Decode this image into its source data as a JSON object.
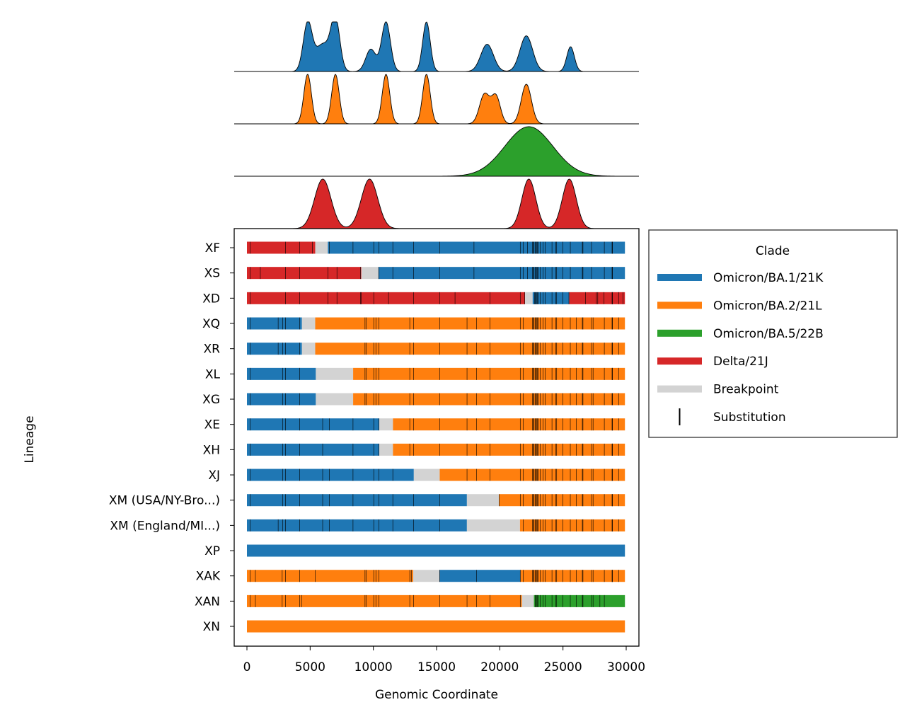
{
  "colors": {
    "BA1": "#1f77b4",
    "BA2": "#ff7f0e",
    "BA5": "#2ca02c",
    "Delta": "#d62728",
    "Breakpoint": "#d3d3d3",
    "Substitution": "#000000"
  },
  "chart_data": {
    "type": "bar",
    "subtype": "horizontal-segment-genome-plot-with-density-panels",
    "xlabel": "Genomic Coordinate",
    "ylabel": "Lineage",
    "xlim": [
      -1000,
      30800
    ],
    "xticks": [
      0,
      5000,
      10000,
      15000,
      20000,
      25000,
      30000
    ],
    "legend": {
      "title": "Clade",
      "position": "right, outside",
      "entries": [
        {
          "label": "Omicron/BA.1/21K",
          "key": "BA1",
          "kind": "line"
        },
        {
          "label": "Omicron/BA.2/21L",
          "key": "BA2",
          "kind": "line"
        },
        {
          "label": "Omicron/BA.5/22B",
          "key": "BA5",
          "kind": "line"
        },
        {
          "label": "Delta/21J",
          "key": "Delta",
          "kind": "line"
        },
        {
          "label": "Breakpoint",
          "key": "Breakpoint",
          "kind": "line"
        },
        {
          "label": "Substitution",
          "key": "Substitution",
          "kind": "tick"
        }
      ]
    },
    "density_panels": [
      {
        "clade": "BA1",
        "peaks": [
          [
            4800,
            350,
            0.95
          ],
          [
            6000,
            600,
            0.55
          ],
          [
            7000,
            350,
            1.0
          ],
          [
            9800,
            400,
            0.45
          ],
          [
            11000,
            350,
            1.0
          ],
          [
            14200,
            300,
            1.0
          ],
          [
            19000,
            500,
            0.55
          ],
          [
            22100,
            500,
            0.72
          ],
          [
            25600,
            300,
            0.5
          ]
        ]
      },
      {
        "clade": "BA2",
        "peaks": [
          [
            4800,
            300,
            1.0
          ],
          [
            7000,
            300,
            1.0
          ],
          [
            11000,
            300,
            1.0
          ],
          [
            14200,
            300,
            1.0
          ],
          [
            18800,
            400,
            0.6
          ],
          [
            19700,
            350,
            0.55
          ],
          [
            22100,
            400,
            0.8
          ]
        ]
      },
      {
        "clade": "BA5",
        "peaks": [
          [
            22300,
            1900,
            1.0
          ]
        ]
      },
      {
        "clade": "Delta",
        "peaks": [
          [
            6000,
            650,
            1.0
          ],
          [
            9700,
            650,
            1.0
          ],
          [
            22300,
            550,
            1.0
          ],
          [
            25500,
            550,
            1.0
          ]
        ]
      }
    ],
    "lineages": [
      {
        "name": "XF",
        "segments": [
          [
            "Delta",
            0,
            5400
          ],
          [
            "Breakpoint",
            5400,
            6400
          ],
          [
            "BA1",
            6400,
            29900
          ]
        ],
        "subs": [
          240,
          3040,
          4180,
          5180,
          6520,
          8390,
          10030,
          10450,
          11540,
          13190,
          15240,
          17960,
          21620,
          21850,
          22200,
          22580,
          22670,
          22710,
          22810,
          22880,
          22900,
          22990,
          23040,
          23200,
          23420,
          23600,
          24130,
          24420,
          24500,
          25000,
          25580,
          26530,
          26580,
          27260,
          28270,
          28880,
          28900,
          28910
        ]
      },
      {
        "name": "XS",
        "segments": [
          [
            "Delta",
            0,
            9050
          ],
          [
            "Breakpoint",
            9050,
            10400
          ],
          [
            "BA1",
            10400,
            29900
          ]
        ],
        "subs": [
          240,
          1060,
          3040,
          4180,
          6400,
          7120,
          8990,
          10450,
          11540,
          13190,
          15240,
          17960,
          21620,
          21850,
          22200,
          22580,
          22670,
          22710,
          22810,
          22880,
          22900,
          22990,
          23040,
          23200,
          23420,
          23600,
          24130,
          24420,
          24500,
          25000,
          25580,
          26530,
          26580,
          27260,
          28270,
          28880,
          28900,
          28910
        ]
      },
      {
        "name": "XD",
        "segments": [
          [
            "Delta",
            0,
            22000
          ],
          [
            "Breakpoint",
            22000,
            22600
          ],
          [
            "BA1",
            22600,
            25500
          ],
          [
            "Delta",
            25500,
            29900
          ]
        ],
        "subs": [
          240,
          3040,
          4180,
          6400,
          7120,
          8990,
          9050,
          10030,
          11200,
          13190,
          15240,
          16460,
          19220,
          21620,
          21980,
          22750,
          22810,
          22880,
          22900,
          22990,
          23040,
          23200,
          23420,
          23600,
          24130,
          24420,
          24500,
          25000,
          25470,
          26770,
          27640,
          27750,
          28250,
          28880,
          28900,
          28910,
          29400,
          29740
        ]
      },
      {
        "name": "XQ",
        "segments": [
          [
            "BA1",
            0,
            4350
          ],
          [
            "Breakpoint",
            4350,
            5400
          ],
          [
            "BA2",
            5400,
            29900
          ]
        ],
        "subs": [
          240,
          2470,
          2830,
          3040,
          4180,
          9340,
          9420,
          10030,
          10200,
          10450,
          12880,
          13190,
          15240,
          17410,
          18160,
          19220,
          21620,
          21850,
          22580,
          22670,
          22710,
          22810,
          22880,
          22900,
          22990,
          23040,
          23200,
          23420,
          23600,
          24130,
          24420,
          24500,
          25000,
          25580,
          26060,
          26530,
          26580,
          27260,
          27380,
          28270,
          28880,
          28900,
          28910,
          29400
        ]
      },
      {
        "name": "XR",
        "segments": [
          [
            "BA1",
            0,
            4350
          ],
          [
            "Breakpoint",
            4350,
            5400
          ],
          [
            "BA2",
            5400,
            29900
          ]
        ],
        "subs": [
          240,
          2470,
          2830,
          3040,
          4180,
          9340,
          9420,
          10030,
          10200,
          10450,
          12880,
          13190,
          15240,
          17410,
          18160,
          19220,
          21620,
          21850,
          22580,
          22670,
          22710,
          22810,
          22880,
          22900,
          22990,
          23040,
          23200,
          23420,
          23600,
          24130,
          24420,
          24500,
          25000,
          25580,
          26060,
          26530,
          26580,
          27260,
          27380,
          28270,
          28880,
          28900,
          28910,
          29400
        ]
      },
      {
        "name": "XL",
        "segments": [
          [
            "BA1",
            0,
            5450
          ],
          [
            "Breakpoint",
            5450,
            8400
          ],
          [
            "BA2",
            8400,
            29900
          ]
        ],
        "subs": [
          240,
          2830,
          3040,
          4180,
          9340,
          9420,
          10030,
          10200,
          10450,
          12880,
          13190,
          15240,
          17410,
          18160,
          19220,
          21620,
          21850,
          22580,
          22670,
          22710,
          22810,
          22880,
          22900,
          22990,
          23040,
          23200,
          23420,
          23600,
          24130,
          24420,
          24500,
          25000,
          25580,
          26060,
          26530,
          26580,
          27260,
          27380,
          28270,
          28880,
          28900,
          28910,
          29400
        ]
      },
      {
        "name": "XG",
        "segments": [
          [
            "BA1",
            0,
            5450
          ],
          [
            "Breakpoint",
            5450,
            8400
          ],
          [
            "BA2",
            8400,
            29900
          ]
        ],
        "subs": [
          240,
          2830,
          3040,
          4180,
          9340,
          9420,
          10030,
          10200,
          10450,
          12880,
          13190,
          15240,
          17410,
          18160,
          19220,
          21620,
          21850,
          22580,
          22670,
          22710,
          22810,
          22880,
          22900,
          22990,
          23040,
          23200,
          23420,
          23600,
          24130,
          24420,
          24500,
          25000,
          25580,
          26060,
          26530,
          26580,
          27260,
          27380,
          28270,
          28880,
          28900,
          28910,
          29400
        ]
      },
      {
        "name": "XE",
        "segments": [
          [
            "BA1",
            0,
            10450
          ],
          [
            "Breakpoint",
            10450,
            11550
          ],
          [
            "BA2",
            11550,
            29900
          ]
        ],
        "subs": [
          240,
          2830,
          3040,
          4180,
          5990,
          6510,
          8390,
          10030,
          10450,
          12880,
          13190,
          15240,
          17410,
          18160,
          19220,
          21620,
          21850,
          22580,
          22670,
          22710,
          22810,
          22880,
          22900,
          22990,
          23040,
          23200,
          23420,
          23600,
          24130,
          24420,
          24500,
          25000,
          25580,
          26060,
          26530,
          26580,
          27260,
          27380,
          28270,
          28880,
          28900,
          28910,
          29400
        ]
      },
      {
        "name": "XH",
        "segments": [
          [
            "BA1",
            0,
            10450
          ],
          [
            "Breakpoint",
            10450,
            11550
          ],
          [
            "BA2",
            11550,
            29900
          ]
        ],
        "subs": [
          240,
          2830,
          3040,
          4180,
          5990,
          8390,
          10030,
          10450,
          12880,
          13190,
          15240,
          17410,
          18160,
          19220,
          21620,
          21850,
          22580,
          22670,
          22710,
          22810,
          22880,
          22900,
          22990,
          23040,
          23200,
          23420,
          23600,
          24130,
          24420,
          24500,
          25000,
          25580,
          26060,
          26530,
          26580,
          27260,
          27380,
          28270,
          28880,
          28900,
          28910,
          29400
        ]
      },
      {
        "name": "XJ",
        "segments": [
          [
            "BA1",
            0,
            13200
          ],
          [
            "Breakpoint",
            13200,
            15250
          ],
          [
            "BA2",
            15250,
            29900
          ]
        ],
        "subs": [
          240,
          2830,
          3040,
          4180,
          5990,
          6510,
          8390,
          10030,
          10450,
          11540,
          17410,
          18160,
          19220,
          21620,
          21850,
          22580,
          22670,
          22710,
          22810,
          22880,
          22900,
          22990,
          23040,
          23200,
          23420,
          23600,
          24130,
          24420,
          24500,
          25000,
          25580,
          26060,
          26530,
          26580,
          27260,
          27380,
          28270,
          28880,
          28900,
          28910,
          29400
        ]
      },
      {
        "name": "XM (USA/NY-Bro...)",
        "segments": [
          [
            "BA1",
            0,
            17400
          ],
          [
            "Breakpoint",
            17400,
            19950
          ],
          [
            "BA2",
            19950,
            29900
          ]
        ],
        "subs": [
          240,
          2830,
          3040,
          4180,
          5990,
          6510,
          8390,
          10030,
          10450,
          11540,
          13190,
          15240,
          19950,
          21620,
          21850,
          22580,
          22670,
          22710,
          22810,
          22880,
          22900,
          22990,
          23040,
          23200,
          23420,
          23600,
          24130,
          24420,
          24500,
          25000,
          25580,
          26060,
          26530,
          26580,
          27260,
          27380,
          28270,
          28880,
          28900,
          28910,
          29400
        ]
      },
      {
        "name": "XM (England/MI...)",
        "segments": [
          [
            "BA1",
            0,
            17400
          ],
          [
            "Breakpoint",
            17400,
            21600
          ],
          [
            "BA2",
            21600,
            29900
          ]
        ],
        "subs": [
          240,
          2470,
          2830,
          3040,
          4180,
          5990,
          6510,
          8390,
          10030,
          10450,
          11540,
          13190,
          15240,
          21850,
          22580,
          22670,
          22710,
          22810,
          22880,
          22900,
          22990,
          23040,
          23200,
          23420,
          23600,
          24130,
          24420,
          24500,
          25000,
          25580,
          26060,
          26530,
          26580,
          27260,
          27380,
          28270,
          28880,
          28900,
          28910,
          29400
        ]
      },
      {
        "name": "XP",
        "segments": [
          [
            "BA1",
            0,
            29900
          ]
        ],
        "subs": []
      },
      {
        "name": "XAK",
        "segments": [
          [
            "BA2",
            0,
            13150
          ],
          [
            "Breakpoint",
            13150,
            15250
          ],
          [
            "BA1",
            15250,
            21650
          ],
          [
            "BA2",
            21650,
            29900
          ]
        ],
        "subs": [
          240,
          670,
          2790,
          3040,
          4180,
          5390,
          9340,
          9420,
          10030,
          10200,
          10450,
          12880,
          13000,
          15240,
          18160,
          21620,
          21850,
          22580,
          22670,
          22710,
          22810,
          22880,
          22900,
          22990,
          23040,
          23200,
          23420,
          23600,
          24130,
          24420,
          24500,
          25000,
          25580,
          26060,
          26530,
          26580,
          27260,
          27380,
          28270,
          28880,
          28900,
          28910,
          29400
        ]
      },
      {
        "name": "XAN",
        "segments": [
          [
            "BA2",
            0,
            21750
          ],
          [
            "Breakpoint",
            21750,
            22700
          ],
          [
            "BA5",
            22700,
            29900
          ]
        ],
        "subs": [
          240,
          670,
          2790,
          3040,
          4180,
          4320,
          9340,
          9420,
          10030,
          10200,
          10450,
          12880,
          13190,
          15240,
          17410,
          18160,
          19220,
          21620,
          22800,
          22880,
          22900,
          22990,
          23040,
          23200,
          23420,
          23600,
          24130,
          24420,
          24500,
          25000,
          25580,
          26060,
          26530,
          26580,
          27260,
          27380,
          27920,
          28270
        ]
      },
      {
        "name": "XN",
        "segments": [
          [
            "BA2",
            0,
            29900
          ]
        ],
        "subs": []
      }
    ]
  }
}
